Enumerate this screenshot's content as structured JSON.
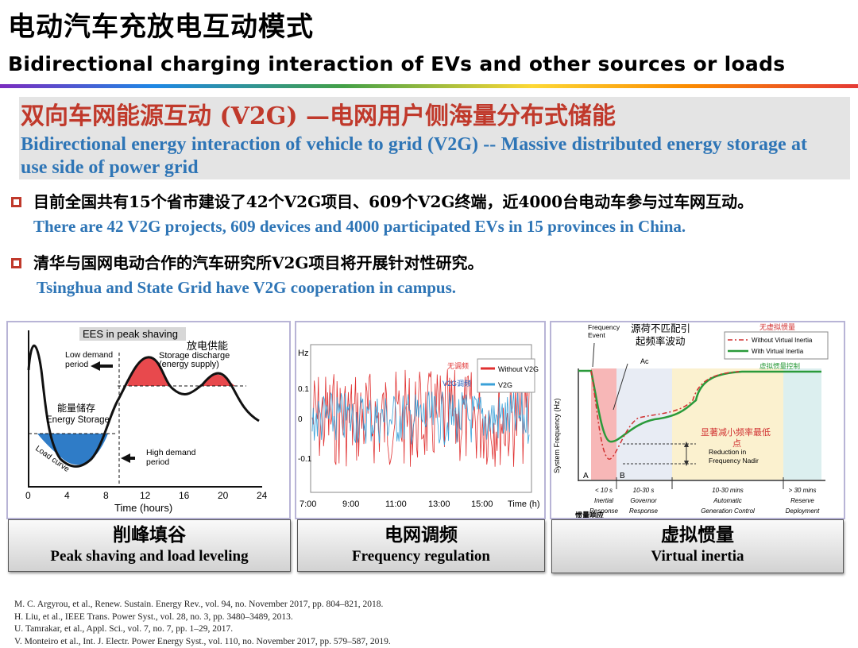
{
  "header": {
    "title_cn": "电动汽车充放电互动模式",
    "title_en": "Bidirectional charging interaction of EVs and other sources or loads"
  },
  "banner": {
    "title_cn": "双向车网能源互动 (V2G) —电网用户侧海量分布式储能",
    "subtitle_en": "Bidirectional energy interaction of vehicle to grid (V2G) -- Massive distributed energy storage at use side of power grid"
  },
  "bullets": [
    {
      "text_cn": "目前全国共有15个省市建设了42个V2G项目、609个V2G终端，近4000台电动车参与过车网互动。",
      "text_en": "There are 42 V2G projects, 609 devices and 4000 participated EVs  in 15 provinces in China."
    },
    {
      "text_cn": "清华与国网电动合作的汽车研究所V2G项目将开展针对性研究。",
      "text_en": "Tsinghua and State Grid have V2G cooperation in campus."
    }
  ],
  "panels": {
    "peak": {
      "tag": "EES in peak shaving",
      "label_fd": "放电供能",
      "label_sd": "Storage discharge",
      "label_es": "(energy supply)",
      "label_low": "Low demand",
      "label_low2": "period",
      "label_high": "High demand",
      "label_high2": "period",
      "label_cn_storage": "能量储存",
      "label_en_storage": "Energy Storage",
      "label_load": "Load curve",
      "xlabel": "Time (hours)",
      "x_ticks": [
        "0",
        "4",
        "8",
        "12",
        "16",
        "20",
        "24"
      ],
      "caption_cn": "削峰填谷",
      "caption_en": "Peak shaving and load leveling"
    },
    "freq": {
      "ylabel": "Hz",
      "y_ticks": [
        "0.1",
        "0",
        "-0.1"
      ],
      "x_ticks": [
        "7:00",
        "9:00",
        "11:00",
        "13:00",
        "15:00"
      ],
      "xlabel": "Time (h)",
      "legend_cn_1": "无调频",
      "legend_cn_2": "V2G调频",
      "legend_1": "Without V2G",
      "legend_2": "V2G",
      "caption_cn": "电网调频",
      "caption_en": "Frequency regulation"
    },
    "inertia": {
      "label_event": "Frequency",
      "label_event2": "Event",
      "label_cn_title": "源荷不匹配引",
      "label_cn_title2": "起频率波动",
      "legend_title_cn": "无虚拟惯量",
      "legend_1": "Without Virtual Inertia",
      "legend_2": "With Virtual Inertia",
      "legend_3_cn": "虚拟惯量控制",
      "label_ac": "Ac",
      "label_cn_reduce": "显著减小频率最低",
      "label_cn_reduce2": "点",
      "label_reduce": "Reduction in",
      "label_reduce2": "Frequency Nadir",
      "ylabel": "System Frequency (Hz)",
      "label_a": "A",
      "label_b": "B",
      "phases": [
        {
          "time": "< 10 s",
          "name": "Inertial",
          "name2": "Response"
        },
        {
          "time": "10-30 s",
          "name": "Governor",
          "name2": "Response"
        },
        {
          "time": "10-30 mins",
          "name": "Automatic",
          "name2": "Generation Control"
        },
        {
          "time": "> 30 mins",
          "name": "Reserve",
          "name2": "Deployment"
        }
      ],
      "label_cn_inertia": "惯量响应",
      "caption_cn": "虚拟惯量",
      "caption_en": "Virtual inertia"
    }
  },
  "references": [
    "M. C. Argyrou, et al., Renew. Sustain. Energy Rev., vol. 94, no. November 2017, pp. 804–821, 2018.",
    "H. Liu, et al., IEEE Trans. Power Syst., vol. 28, no. 3, pp. 3480–3489, 2013.",
    "U. Tamrakar, et al., Appl. Sci., vol. 7, no. 7, pp. 1–29, 2017.",
    "V. Monteiro et al., Int. J. Electr. Power Energy Syst., vol. 110, no. November 2017, pp. 579–587, 2019."
  ],
  "colors": {
    "accent_red": "#c0392b",
    "accent_blue": "#2e75b6",
    "panel_border": "#b8b4d6"
  }
}
